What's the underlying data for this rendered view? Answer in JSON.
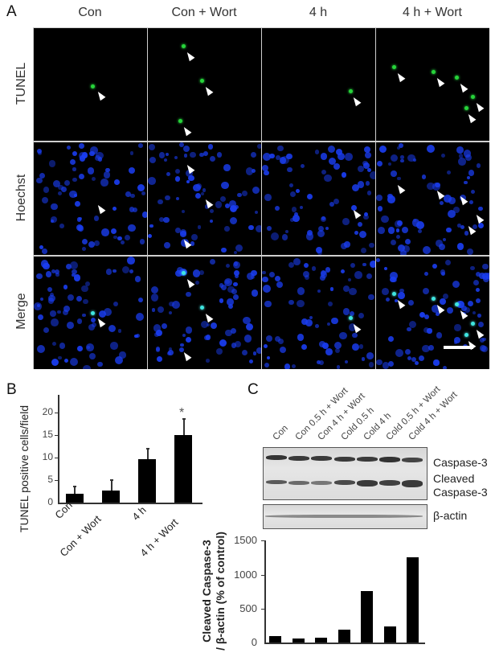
{
  "figure": {
    "panel_a": {
      "letter": "A",
      "columns": [
        "Con",
        "Con + Wort",
        "4 h",
        "4 h + Wort"
      ],
      "rows": [
        "TUNEL",
        "Hoechst",
        "Merge"
      ],
      "stain_colors": {
        "tunel": "#27d43a",
        "hoechst": "#1a3df0",
        "merge_overlap": "#3fe6e0"
      },
      "arrowhead_counts": [
        1,
        3,
        1,
        5
      ],
      "scale_bar": true
    },
    "panel_b": {
      "letter": "B",
      "ylabel": "TUNEL positive cells/field",
      "yticks": [
        "0",
        "5",
        "10",
        "15",
        "20"
      ],
      "categories": [
        "Con",
        "Con + Wort",
        "4 h",
        "4 h + Wort"
      ],
      "significance_marker": "*"
    },
    "panel_c": {
      "letter": "C",
      "lanes": [
        "Con",
        "Con 0.5 h + Wort",
        "Con 4 h + Wort",
        "Cold 0.5 h",
        "Cold 4 h",
        "Cold 0.5 h + Wort",
        "Cold 4 h + Wort"
      ],
      "blot_labels": {
        "caspase": "Caspase-3",
        "cleaved_1": "Cleaved",
        "cleaved_2": "Caspase-3",
        "actin": "β-actin"
      },
      "ylabel_1": "Cleaved Caspase-3",
      "ylabel_2": "/ β-actin (% of control)",
      "yticks": [
        "0",
        "500",
        "1000",
        "1500"
      ]
    }
  },
  "chart_data": [
    {
      "type": "bar",
      "title": "B",
      "categories": [
        "Con",
        "Con + Wort",
        "4 h",
        "4 h + Wort"
      ],
      "values": [
        2.0,
        2.6,
        9.6,
        15.0
      ],
      "errors": [
        1.6,
        2.3,
        2.4,
        3.5
      ],
      "annotations": [
        {
          "category": "4 h + Wort",
          "text": "*"
        }
      ],
      "xlabel": "",
      "ylabel": "TUNEL positive cells/field",
      "ylim": [
        0,
        23
      ],
      "yticks": [
        0,
        5,
        10,
        15,
        20
      ],
      "grid": false,
      "legend": null
    },
    {
      "type": "bar",
      "title": "C",
      "categories": [
        "Con",
        "Con 0.5 h + Wort",
        "Con 4 h + Wort",
        "Cold 0.5 h",
        "Cold 4 h",
        "Cold 0.5 h + Wort",
        "Cold 4 h + Wort"
      ],
      "values": [
        100,
        60,
        70,
        190,
        760,
        230,
        1250
      ],
      "xlabel": "",
      "ylabel": "Cleaved Caspase-3 / β-actin (% of control)",
      "ylim": [
        0,
        1500
      ],
      "yticks": [
        0,
        500,
        1000,
        1500
      ],
      "grid": false,
      "legend": null
    }
  ]
}
